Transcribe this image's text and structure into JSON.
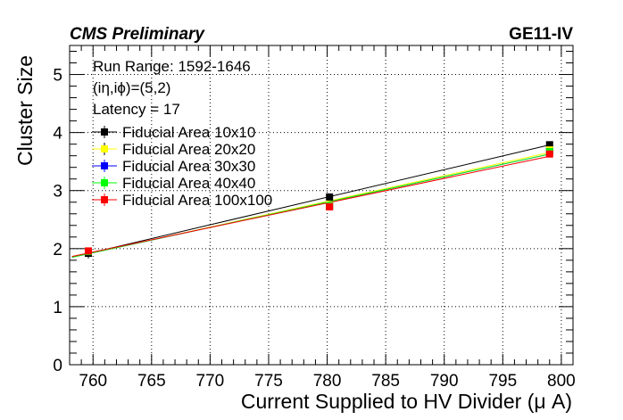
{
  "header": {
    "experiment": "CMS Preliminary",
    "detector": "GE11-IV"
  },
  "info": {
    "run_range": "Run Range: 1592-1646",
    "position": "(iη,iϕ)=(5,2)",
    "latency": "Latency = 17"
  },
  "chart_data": {
    "type": "line",
    "xlabel": "Current Supplied to HV Divider (μ A)",
    "ylabel": "Cluster Size",
    "xlim": [
      758,
      801
    ],
    "ylim": [
      0,
      5.5
    ],
    "xticks": [
      760,
      765,
      770,
      775,
      780,
      785,
      790,
      795,
      800
    ],
    "yticks": [
      0,
      1,
      2,
      3,
      4,
      5
    ],
    "grid": true,
    "legend_position": "top-left",
    "x": [
      759.6,
      780.2,
      799.0
    ],
    "series": [
      {
        "name": "Fiducial Area 10x10",
        "color": "#000000",
        "values": [
          1.92,
          2.89,
          3.79
        ],
        "errors": [
          0.09,
          0.05,
          0.05
        ]
      },
      {
        "name": "Fiducial Area 20x20",
        "color": "#ffff00",
        "values": [
          1.95,
          2.74,
          3.7
        ],
        "errors": [
          0.04,
          0.03,
          0.03
        ]
      },
      {
        "name": "Fiducial Area 30x30",
        "color": "#0000ff",
        "values": [
          1.95,
          2.73,
          3.67
        ],
        "errors": [
          0.03,
          0.02,
          0.02
        ]
      },
      {
        "name": "Fiducial Area 40x40",
        "color": "#00ff00",
        "values": [
          1.95,
          2.73,
          3.67
        ],
        "errors": [
          0.03,
          0.02,
          0.02
        ]
      },
      {
        "name": "Fiducial Area 100x100",
        "color": "#ff0000",
        "values": [
          1.96,
          2.72,
          3.63
        ],
        "errors": [
          0.03,
          0.02,
          0.02
        ]
      }
    ]
  }
}
